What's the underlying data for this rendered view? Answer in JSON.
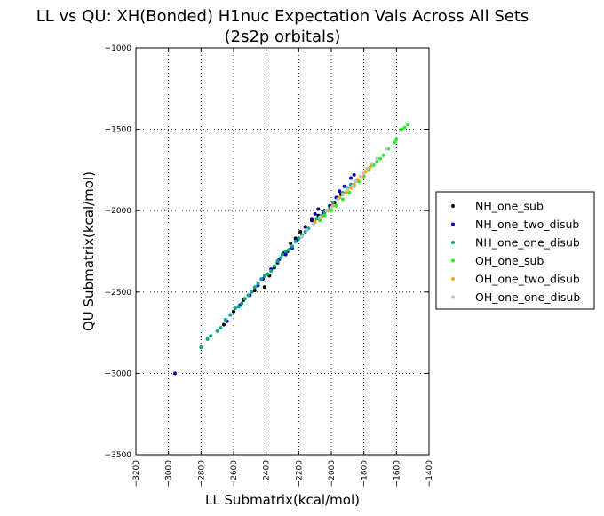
{
  "chart_data": {
    "type": "scatter",
    "title": "LL vs QU: XH(Bonded) H1nuc Expectation Vals Across All Sets",
    "subtitle": "(2s2p orbitals)",
    "xlabel": "LL Submatrix(kcal/mol)",
    "ylabel": "QU Submatrix(kcal/mol)",
    "xlim": [
      -3200,
      -1400
    ],
    "ylim": [
      -3500,
      -1000
    ],
    "x_ticks": [
      -3200,
      -3000,
      -2800,
      -2600,
      -2400,
      -2200,
      -2000,
      -1800,
      -1600,
      -1400
    ],
    "y_ticks": [
      -3500,
      -3000,
      -2500,
      -2000,
      -1500,
      -1000
    ],
    "x_tick_labels": [
      "−3200",
      "−3000",
      "−2800",
      "−2600",
      "−2400",
      "−2200",
      "−2000",
      "−1800",
      "−1600",
      "−1400"
    ],
    "y_tick_labels": [
      "−3500",
      "−3000",
      "−2500",
      "−2000",
      "−1500",
      "−1000"
    ],
    "grid": true,
    "legend_position": "outside-right",
    "series": [
      {
        "name": "NH_one_sub",
        "color": "#000000",
        "points": [
          [
            -2660,
            -2700
          ],
          [
            -2600,
            -2620
          ],
          [
            -2540,
            -2550
          ],
          [
            -2470,
            -2490
          ],
          [
            -2410,
            -2470
          ],
          [
            -2380,
            -2400
          ],
          [
            -2350,
            -2350
          ],
          [
            -2330,
            -2320
          ],
          [
            -2310,
            -2290
          ],
          [
            -2290,
            -2260
          ],
          [
            -2270,
            -2250
          ],
          [
            -2250,
            -2200
          ],
          [
            -2220,
            -2170
          ],
          [
            -2190,
            -2130
          ],
          [
            -2160,
            -2100
          ],
          [
            -2120,
            -2060
          ],
          [
            -2080,
            -2030
          ],
          [
            -2040,
            -2000
          ],
          [
            -1980,
            -1950
          ],
          [
            -1940,
            -1900
          ]
        ]
      },
      {
        "name": "NH_one_two_disub",
        "color": "#0000cc",
        "points": [
          [
            -2960,
            -3000
          ],
          [
            -2640,
            -2680
          ],
          [
            -2560,
            -2580
          ],
          [
            -2500,
            -2520
          ],
          [
            -2450,
            -2460
          ],
          [
            -2420,
            -2420
          ],
          [
            -2370,
            -2360
          ],
          [
            -2320,
            -2300
          ],
          [
            -2280,
            -2270
          ],
          [
            -2240,
            -2230
          ],
          [
            -2210,
            -2180
          ],
          [
            -2180,
            -2150
          ],
          [
            -2150,
            -2110
          ],
          [
            -2120,
            -2050
          ],
          [
            -2100,
            -2020
          ],
          [
            -2080,
            -1990
          ],
          [
            -2050,
            -2010
          ],
          [
            -2010,
            -1970
          ],
          [
            -1970,
            -1920
          ],
          [
            -1950,
            -1880
          ],
          [
            -1920,
            -1850
          ],
          [
            -1880,
            -1800
          ],
          [
            -1860,
            -1780
          ]
        ]
      },
      {
        "name": "NH_one_one_disub",
        "color": "#00a884",
        "points": [
          [
            -2800,
            -2840
          ],
          [
            -2760,
            -2790
          ],
          [
            -2740,
            -2770
          ],
          [
            -2700,
            -2740
          ],
          [
            -2680,
            -2720
          ],
          [
            -2650,
            -2670
          ],
          [
            -2620,
            -2640
          ],
          [
            -2590,
            -2600
          ],
          [
            -2570,
            -2590
          ],
          [
            -2550,
            -2570
          ],
          [
            -2530,
            -2540
          ],
          [
            -2510,
            -2520
          ],
          [
            -2490,
            -2500
          ],
          [
            -2470,
            -2470
          ],
          [
            -2450,
            -2450
          ],
          [
            -2430,
            -2420
          ],
          [
            -2410,
            -2400
          ],
          [
            -2390,
            -2390
          ],
          [
            -2370,
            -2370
          ],
          [
            -2350,
            -2340
          ],
          [
            -2330,
            -2310
          ],
          [
            -2310,
            -2290
          ],
          [
            -2300,
            -2270
          ],
          [
            -2280,
            -2250
          ],
          [
            -2260,
            -2240
          ],
          [
            -2240,
            -2220
          ],
          [
            -2220,
            -2190
          ],
          [
            -2200,
            -2170
          ],
          [
            -2180,
            -2150
          ],
          [
            -2160,
            -2130
          ],
          [
            -2140,
            -2110
          ],
          [
            -2110,
            -2080
          ],
          [
            -2090,
            -2050
          ],
          [
            -2060,
            -2030
          ],
          [
            -2040,
            -2010
          ],
          [
            -2010,
            -1990
          ],
          [
            -1990,
            -1950
          ],
          [
            -1960,
            -1930
          ],
          [
            -1930,
            -1890
          ],
          [
            -1900,
            -1860
          ],
          [
            -1880,
            -1840
          ],
          [
            -1850,
            -1820
          ]
        ]
      },
      {
        "name": "OH_one_sub",
        "color": "#22ee22",
        "points": [
          [
            -1530,
            -1470
          ],
          [
            -1550,
            -1490
          ],
          [
            -1570,
            -1500
          ],
          [
            -1600,
            -1560
          ],
          [
            -1610,
            -1580
          ],
          [
            -1650,
            -1620
          ],
          [
            -1680,
            -1660
          ],
          [
            -1700,
            -1680
          ],
          [
            -1720,
            -1700
          ],
          [
            -1740,
            -1720
          ],
          [
            -1770,
            -1750
          ],
          [
            -1800,
            -1790
          ],
          [
            -1830,
            -1820
          ],
          [
            -1860,
            -1850
          ],
          [
            -1890,
            -1890
          ],
          [
            -1930,
            -1930
          ],
          [
            -1970,
            -1970
          ],
          [
            -2000,
            -2000
          ],
          [
            -2040,
            -2030
          ],
          [
            -2070,
            -2060
          ]
        ]
      },
      {
        "name": "OH_one_two_disub",
        "color": "#ffa500",
        "points": [
          [
            -1760,
            -1730
          ],
          [
            -1790,
            -1760
          ],
          [
            -1810,
            -1790
          ],
          [
            -1840,
            -1810
          ],
          [
            -1860,
            -1840
          ],
          [
            -1880,
            -1860
          ],
          [
            -1910,
            -1890
          ],
          [
            -1950,
            -1920
          ],
          [
            -1990,
            -1970
          ],
          [
            -2020,
            -2000
          ],
          [
            -2060,
            -2040
          ],
          [
            -2100,
            -2070
          ]
        ]
      },
      {
        "name": "OH_one_one_disub",
        "color": "#c0c0c0",
        "points": [
          [
            -1660,
            -1620
          ],
          [
            -1720,
            -1680
          ],
          [
            -1750,
            -1710
          ],
          [
            -1780,
            -1740
          ],
          [
            -1800,
            -1770
          ],
          [
            -1820,
            -1790
          ],
          [
            -1850,
            -1820
          ],
          [
            -1870,
            -1850
          ],
          [
            -1900,
            -1870
          ],
          [
            -1930,
            -1900
          ],
          [
            -1960,
            -1930
          ],
          [
            -2000,
            -1980
          ],
          [
            -2030,
            -2000
          ],
          [
            -2070,
            -2040
          ],
          [
            -2110,
            -2080
          ],
          [
            -2150,
            -2120
          ],
          [
            -2180,
            -2160
          ]
        ]
      }
    ]
  }
}
